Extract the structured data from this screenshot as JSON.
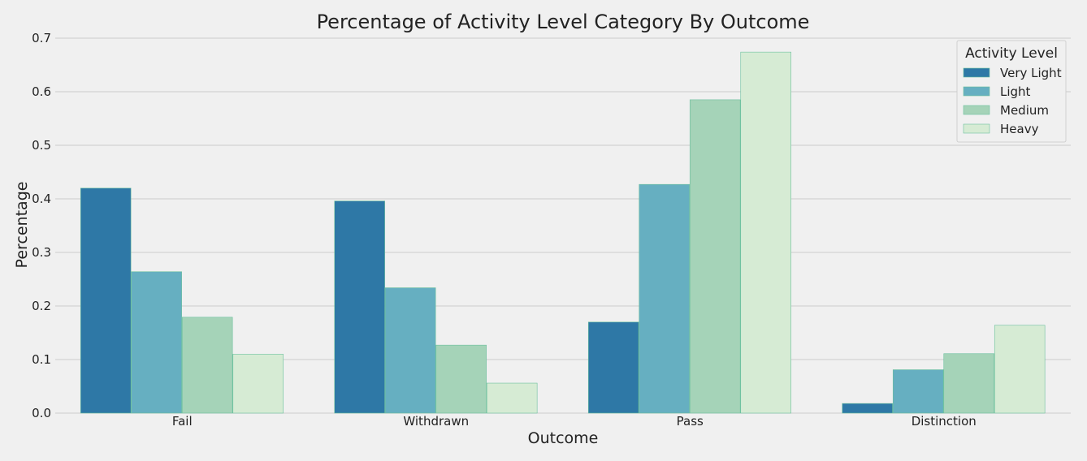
{
  "chart_data": {
    "type": "bar",
    "title": "Percentage of Activity Level Category By Outcome",
    "xlabel": "Outcome",
    "ylabel": "Percentage",
    "ylim": [
      0,
      0.7
    ],
    "yticks": [
      "0.0",
      "0.1",
      "0.2",
      "0.3",
      "0.4",
      "0.5",
      "0.6",
      "0.7"
    ],
    "categories": [
      "Fail",
      "Withdrawn",
      "Pass",
      "Distinction"
    ],
    "grid": "horizontal",
    "legend": {
      "title": "Activity Level",
      "placement": "top-right"
    },
    "series": [
      {
        "name": "Very Light",
        "color": "#2e78a6",
        "values": [
          0.42,
          0.396,
          0.17,
          0.018
        ]
      },
      {
        "name": "Light",
        "color": "#66afc1",
        "values": [
          0.264,
          0.234,
          0.427,
          0.081
        ]
      },
      {
        "name": "Medium",
        "color": "#a5d3b8",
        "values": [
          0.179,
          0.127,
          0.585,
          0.111
        ]
      },
      {
        "name": "Heavy",
        "color": "#d6ebd4",
        "values": [
          0.11,
          0.056,
          0.674,
          0.164
        ]
      }
    ]
  }
}
